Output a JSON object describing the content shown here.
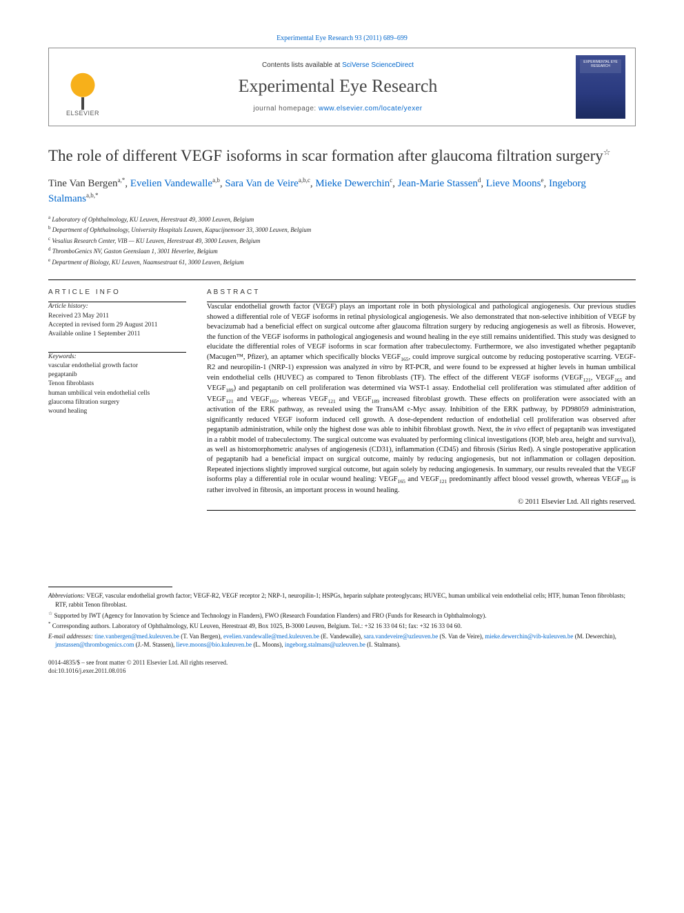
{
  "citation": "Experimental Eye Research 93 (2011) 689–699",
  "header": {
    "publisher": "ELSEVIER",
    "contents_prefix": "Contents lists available at ",
    "contents_link": "SciVerse ScienceDirect",
    "journal": "Experimental Eye Research",
    "homepage_prefix": "journal homepage: ",
    "homepage_url": "www.elsevier.com/locate/yexer",
    "cover_label": "EXPERIMENTAL EYE RESEARCH"
  },
  "title": "The role of different VEGF isoforms in scar formation after glaucoma filtration surgery",
  "title_note_marker": "☆",
  "authors_html": "Tine Van Bergen<sup>a,*</sup>, <span class='link'>Evelien Vandewalle</span><sup>a,b</sup>, <span class='link'>Sara Van de Veire</span><sup>a,b,c</sup>, <span class='link'>Mieke Dewerchin</span><sup>c</sup>, <span class='link'>Jean-Marie Stassen</span><sup>d</sup>, <span class='link'>Lieve Moons</span><sup>e</sup>, <span class='link'>Ingeborg Stalmans</span><sup>a,b,*</sup>",
  "affiliations": [
    {
      "marker": "a",
      "text": "Laboratory of Ophthalmology, KU Leuven, Herestraat 49, 3000 Leuven, Belgium"
    },
    {
      "marker": "b",
      "text": "Department of Ophthalmology, University Hospitals Leuven, Kapucijnenvoer 33, 3000 Leuven, Belgium"
    },
    {
      "marker": "c",
      "text": "Vesalius Research Center, VIB — KU Leuven, Herestraat 49, 3000 Leuven, Belgium"
    },
    {
      "marker": "d",
      "text": "ThromboGenics NV, Gaston Geenslaan 1, 3001 Heverlee, Belgium"
    },
    {
      "marker": "e",
      "text": "Department of Biology, KU Leuven, Naamsestraat 61, 3000 Leuven, Belgium"
    }
  ],
  "article_info": {
    "heading": "ARTICLE INFO",
    "history_label": "Article history:",
    "received": "Received 23 May 2011",
    "accepted": "Accepted in revised form 29 August 2011",
    "online": "Available online 1 September 2011",
    "keywords_label": "Keywords:",
    "keywords": [
      "vascular endothelial growth factor",
      "pegaptanib",
      "Tenon fibroblasts",
      "human umbilical vein endothelial cells",
      "glaucoma filtration surgery",
      "wound healing"
    ]
  },
  "abstract": {
    "heading": "ABSTRACT",
    "text": "Vascular endothelial growth factor (VEGF) plays an important role in both physiological and pathological angiogenesis. Our previous studies showed a differential role of VEGF isoforms in retinal physiological angiogenesis. We also demonstrated that non-selective inhibition of VEGF by bevacizumab had a beneficial effect on surgical outcome after glaucoma filtration surgery by reducing angiogenesis as well as fibrosis. However, the function of the VEGF isoforms in pathological angiogenesis and wound healing in the eye still remains unidentified. This study was designed to elucidate the differential roles of VEGF isoforms in scar formation after trabeculectomy. Furthermore, we also investigated whether pegaptanib (Macugen™, Pfizer), an aptamer which specifically blocks VEGF₁₆₅, could improve surgical outcome by reducing postoperative scarring. VEGF-R2 and neuropilin-1 (NRP-1) expression was analyzed in vitro by RT-PCR, and were found to be expressed at higher levels in human umbilical vein endothelial cells (HUVEC) as compared to Tenon fibroblasts (TF). The effect of the different VEGF isoforms (VEGF₁₂₁, VEGF₁₆₅ and VEGF₁₈₉) and pegaptanib on cell proliferation was determined via WST-1 assay. Endothelial cell proliferation was stimulated after addition of VEGF₁₂₁ and VEGF₁₆₅, whereas VEGF₁₂₁ and VEGF₁₈₉ increased fibroblast growth. These effects on proliferation were associated with an activation of the ERK pathway, as revealed using the TransAM c-Myc assay. Inhibition of the ERK pathway, by PD98059 administration, significantly reduced VEGF isoform induced cell growth. A dose-dependent reduction of endothelial cell proliferation was observed after pegaptanib administration, while only the highest dose was able to inhibit fibroblast growth. Next, the in vivo effect of pegaptanib was investigated in a rabbit model of trabeculectomy. The surgical outcome was evaluated by performing clinical investigations (IOP, bleb area, height and survival), as well as histomorphometric analyses of angiogenesis (CD31), inflammation (CD45) and fibrosis (Sirius Red). A single postoperative application of pegaptanib had a beneficial impact on surgical outcome, mainly by reducing angiogenesis, but not inflammation or collagen deposition. Repeated injections slightly improved surgical outcome, but again solely by reducing angiogenesis. In summary, our results revealed that the VEGF isoforms play a differential role in ocular wound healing: VEGF₁₆₅ and VEGF₁₂₁ predominantly affect blood vessel growth, whereas VEGF₁₈₉ is rather involved in fibrosis, an important process in wound healing.",
    "copyright": "© 2011 Elsevier Ltd. All rights reserved."
  },
  "footnotes": {
    "abbreviations_label": "Abbreviations:",
    "abbreviations": "VEGF, vascular endothelial growth factor; VEGF-R2, VEGF receptor 2; NRP-1, neuropilin-1; HSPGs, heparin sulphate proteoglycans; HUVEC, human umbilical vein endothelial cells; HTF, human Tenon fibroblasts; RTF, rabbit Tenon fibroblast.",
    "support_marker": "☆",
    "support": "Supported by IWT (Agency for Innovation by Science and Technology in Flanders), FWO (Research Foundation Flanders) and FRO (Funds for Research in Ophthalmology).",
    "corresponding_marker": "*",
    "corresponding": "Corresponding authors. Laboratory of Ophthalmology, KU Leuven, Herestraat 49, Box 1025, B-3000 Leuven, Belgium. Tel.: +32 16 33 04 61; fax: +32 16 33 04 60.",
    "email_label": "E-mail addresses:",
    "emails": [
      {
        "addr": "tine.vanbergen@med.kuleuven.be",
        "who": "(T. Van Bergen)"
      },
      {
        "addr": "evelien.vandewalle@med.kuleuven.be",
        "who": "(E. Vandewalle)"
      },
      {
        "addr": "sara.vandeveire@uzleuven.be",
        "who": "(S. Van de Veire)"
      },
      {
        "addr": "mieke.dewerchin@vib-kuleuven.be",
        "who": "(M. Dewerchin)"
      },
      {
        "addr": "jmstassen@thrombogenics.com",
        "who": "(J.-M. Stassen)"
      },
      {
        "addr": "lieve.moons@bio.kuleuven.be",
        "who": "(L. Moons)"
      },
      {
        "addr": "ingeborg.stalmans@uzleuven.be",
        "who": "(I. Stalmans)."
      }
    ]
  },
  "footer": {
    "issn": "0014-4835/$ – see front matter © 2011 Elsevier Ltd. All rights reserved.",
    "doi": "doi:10.1016/j.exer.2011.08.016"
  },
  "colors": {
    "link": "#0066cc",
    "text": "#111111",
    "rule": "#000000"
  }
}
